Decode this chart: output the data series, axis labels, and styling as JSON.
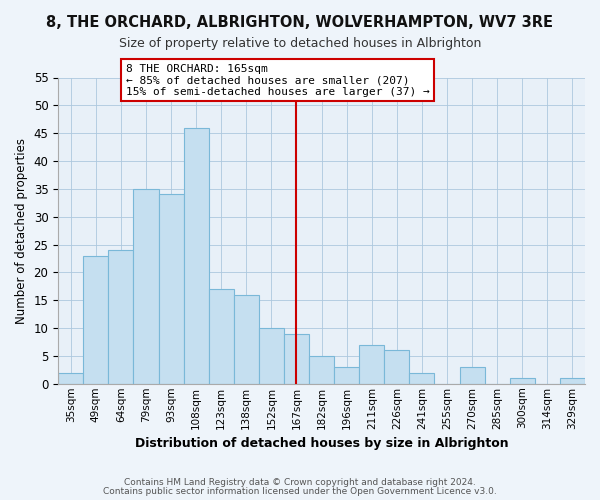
{
  "title": "8, THE ORCHARD, ALBRIGHTON, WOLVERHAMPTON, WV7 3RE",
  "subtitle": "Size of property relative to detached houses in Albrighton",
  "xlabel": "Distribution of detached houses by size in Albrighton",
  "ylabel": "Number of detached properties",
  "bar_labels": [
    "35sqm",
    "49sqm",
    "64sqm",
    "79sqm",
    "93sqm",
    "108sqm",
    "123sqm",
    "138sqm",
    "152sqm",
    "167sqm",
    "182sqm",
    "196sqm",
    "211sqm",
    "226sqm",
    "241sqm",
    "255sqm",
    "270sqm",
    "285sqm",
    "300sqm",
    "314sqm",
    "329sqm"
  ],
  "bar_values": [
    2,
    23,
    24,
    35,
    34,
    46,
    17,
    16,
    10,
    9,
    5,
    3,
    7,
    6,
    2,
    0,
    3,
    0,
    1,
    0,
    1
  ],
  "bar_color": "#c5dff0",
  "bar_edge_color": "#7ab8d8",
  "vline_x_index": 9,
  "vline_color": "#cc0000",
  "annotation_text": "8 THE ORCHARD: 165sqm\n← 85% of detached houses are smaller (207)\n15% of semi-detached houses are larger (37) →",
  "annotation_box_color": "#ffffff",
  "annotation_box_edge": "#cc0000",
  "ylim": [
    0,
    55
  ],
  "yticks": [
    0,
    5,
    10,
    15,
    20,
    25,
    30,
    35,
    40,
    45,
    50,
    55
  ],
  "footer_line1": "Contains HM Land Registry data © Crown copyright and database right 2024.",
  "footer_line2": "Contains public sector information licensed under the Open Government Licence v3.0.",
  "bg_color": "#eef4fa",
  "plot_bg_color": "#e8f0f8"
}
